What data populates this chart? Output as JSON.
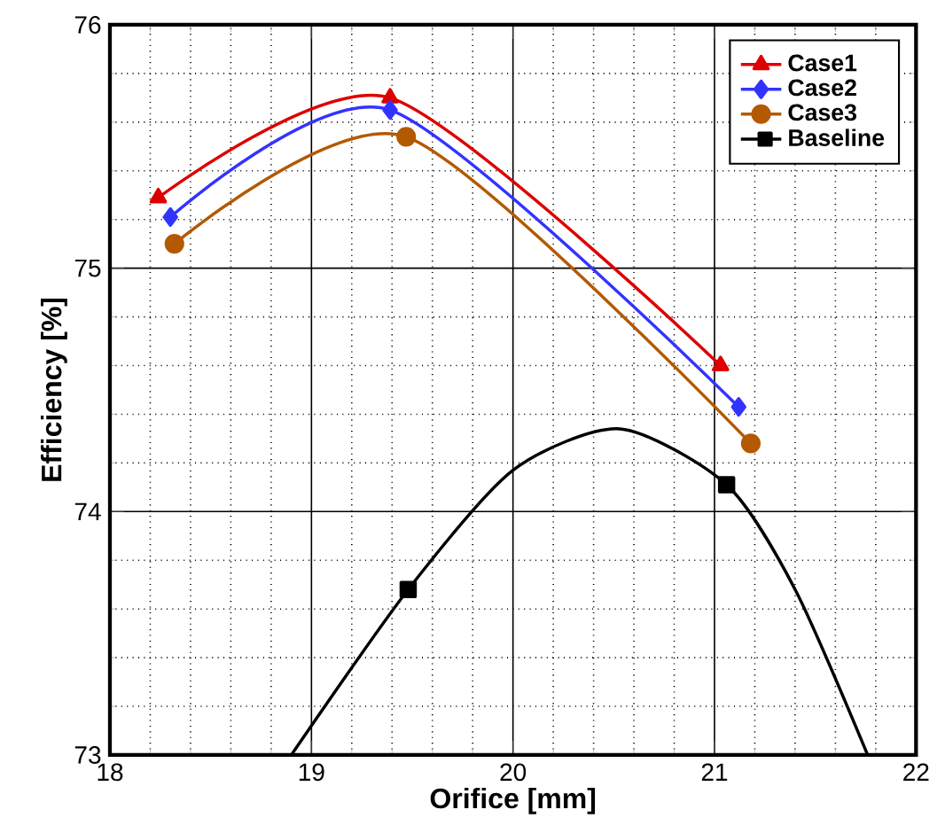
{
  "chart_data": {
    "type": "line",
    "xlabel": "Orifice [mm]",
    "ylabel": "Efficiency [%]",
    "xlim": [
      18,
      22
    ],
    "ylim": [
      73,
      76
    ],
    "xticks": [
      18,
      {
        "value": 18.2,
        "label": null
      },
      {
        "value": 18.4,
        "label": null
      },
      {
        "value": 18.6,
        "label": null
      },
      {
        "value": 18.8,
        "label": null
      },
      19,
      {
        "value": 19.2,
        "label": null
      },
      {
        "value": 19.4,
        "label": null
      },
      {
        "value": 19.6,
        "label": null
      },
      {
        "value": 19.8,
        "label": null
      },
      20,
      {
        "value": 20.2,
        "label": null
      },
      {
        "value": 20.4,
        "label": null
      },
      {
        "value": 20.6,
        "label": null
      },
      {
        "value": 20.8,
        "label": null
      },
      21,
      {
        "value": 21.2,
        "label": null
      },
      {
        "value": 21.4,
        "label": null
      },
      {
        "value": 21.6,
        "label": null
      },
      {
        "value": 21.8,
        "label": null
      },
      22
    ],
    "yticks": [
      73,
      {
        "value": 73.2,
        "label": null
      },
      {
        "value": 73.4,
        "label": null
      },
      {
        "value": 73.6,
        "label": null
      },
      {
        "value": 73.8,
        "label": null
      },
      74,
      {
        "value": 74.2,
        "label": null
      },
      {
        "value": 74.4,
        "label": null
      },
      {
        "value": 74.6,
        "label": null
      },
      {
        "value": 74.8,
        "label": null
      },
      75,
      {
        "value": 75.2,
        "label": null
      },
      {
        "value": 75.4,
        "label": null
      },
      {
        "value": 75.6,
        "label": null
      },
      {
        "value": 75.8,
        "label": null
      },
      76
    ],
    "grid": true,
    "legend": "top right",
    "series": [
      {
        "marker": "none",
        "color": "#000000",
        "x": [
          18.9,
          19.48,
          20.0,
          20.53,
          21.06,
          21.4,
          21.76
        ],
        "values": [
          73.0,
          73.68,
          74.17,
          74.34,
          74.11,
          73.68,
          73.0
        ]
      },
      {
        "name": "Case1",
        "marker": "triangle",
        "color": "#dd0000",
        "x": [
          18.24,
          19.39,
          21.03
        ],
        "values": [
          75.29,
          75.7,
          74.6
        ]
      },
      {
        "name": "Case2",
        "marker": "diamond",
        "color": "#3333ff",
        "x": [
          18.3,
          19.39,
          21.12
        ],
        "values": [
          75.21,
          75.65,
          74.43
        ]
      },
      {
        "name": "Case3",
        "marker": "circle",
        "color": "#b35900",
        "x": [
          18.32,
          19.47,
          21.18
        ],
        "values": [
          75.1,
          75.54,
          74.28
        ]
      },
      {
        "name": "Baseline",
        "type": "scatter",
        "marker": "square",
        "color": "#000000",
        "x": [
          19.48,
          21.06
        ],
        "values": [
          73.68,
          74.11
        ]
      }
    ]
  }
}
